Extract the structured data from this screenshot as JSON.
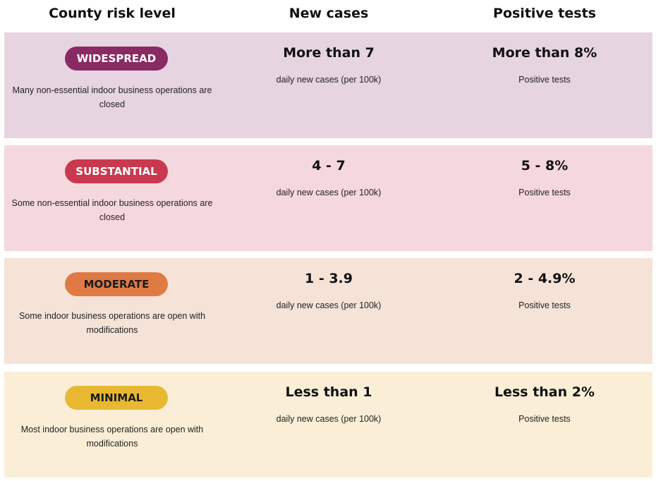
{
  "header": [
    "County risk level",
    "New cases",
    "Positive tests"
  ],
  "rows": [
    {
      "level": "WIDESPREAD",
      "description": "Many non-essential indoor business operations are closed",
      "new_cases": "More than 7",
      "new_cases_note": "daily new cases (per 100k)",
      "positive_tests": "More than 8%",
      "positive_tests_note": "Positive tests"
    },
    {
      "level": "SUBSTANTIAL",
      "description": "Some non-essential indoor business operations are closed",
      "new_cases": "4 - 7",
      "new_cases_note": "daily new cases (per 100k)",
      "positive_tests": "5 - 8%",
      "positive_tests_note": "Positive tests"
    },
    {
      "level": "MODERATE",
      "description": "Some indoor business operations are open with modifications",
      "new_cases": "1 - 3.9",
      "new_cases_note": "daily new cases (per 100k)",
      "positive_tests": "2 - 4.9%",
      "positive_tests_note": "Positive tests"
    },
    {
      "level": "MINIMAL",
      "description": "Most indoor business operations are open with modifications",
      "new_cases": "Less than 1",
      "new_cases_note": "daily new cases (per 100k)",
      "positive_tests": "Less than 2%",
      "positive_tests_note": "Positive tests"
    }
  ]
}
